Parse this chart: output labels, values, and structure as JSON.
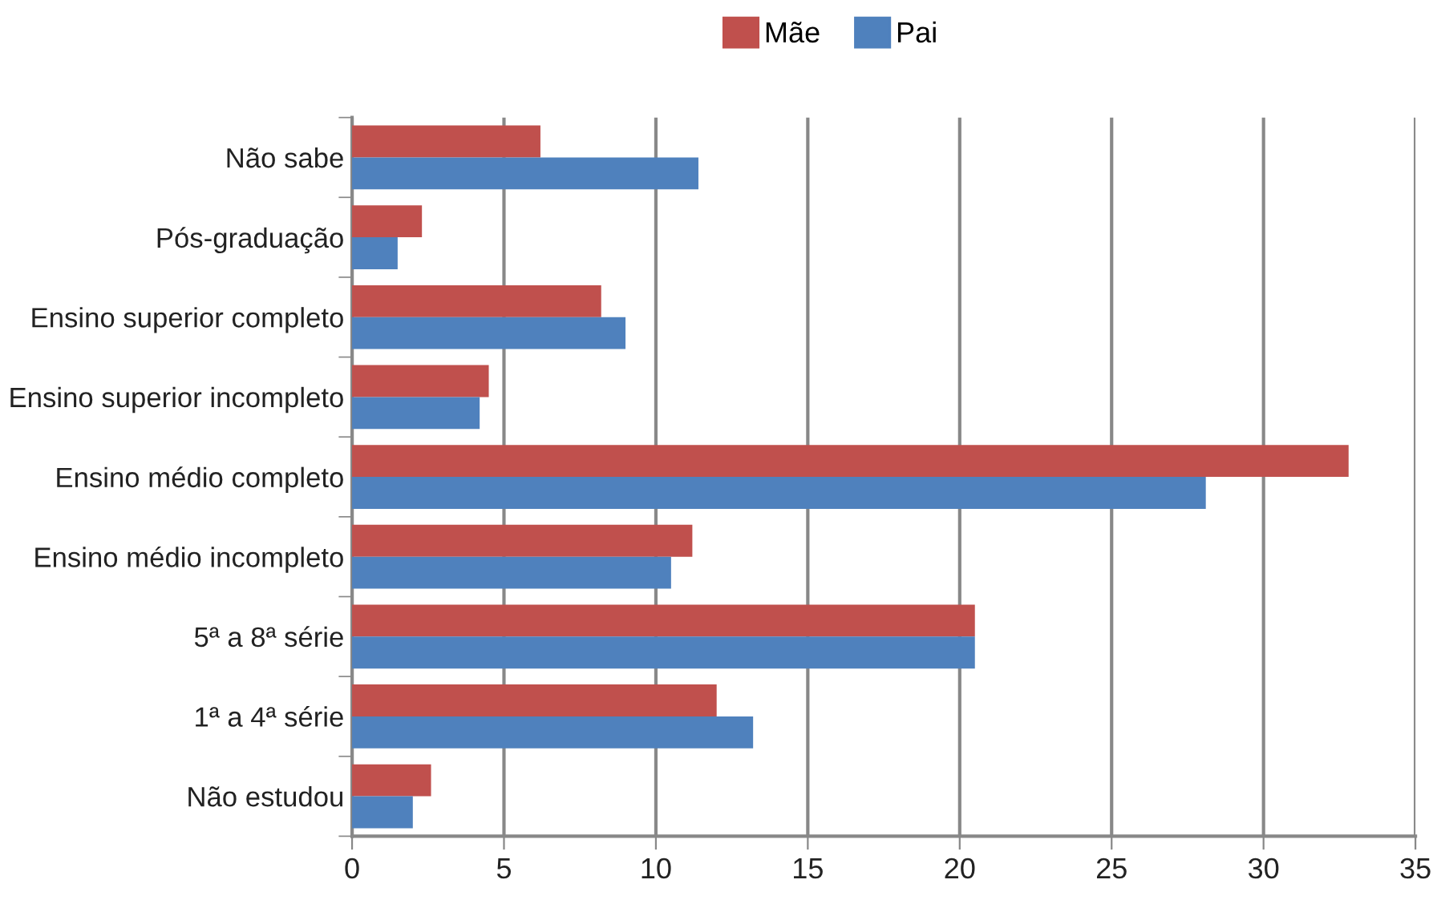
{
  "chart_data": {
    "type": "bar",
    "orientation": "horizontal",
    "categories": [
      "Não sabe",
      "Pós-graduação",
      "Ensino superior completo",
      "Ensino superior incompleto",
      "Ensino médio completo",
      "Ensino médio incompleto",
      "5ª a 8ª série",
      "1ª a 4ª série",
      "Não estudou"
    ],
    "series": [
      {
        "name": "Mãe",
        "color": "#c0504d",
        "values": [
          6.2,
          2.3,
          8.2,
          4.5,
          32.8,
          11.2,
          20.5,
          12.0,
          2.6
        ]
      },
      {
        "name": "Pai",
        "color": "#4f81bd",
        "values": [
          11.4,
          1.5,
          9.0,
          4.2,
          28.1,
          10.5,
          20.5,
          13.2,
          2.0
        ]
      }
    ],
    "xlim": [
      0,
      35
    ],
    "xticks": [
      0,
      5,
      10,
      15,
      20,
      25,
      30,
      35
    ],
    "grid": "x",
    "legend": "top"
  }
}
